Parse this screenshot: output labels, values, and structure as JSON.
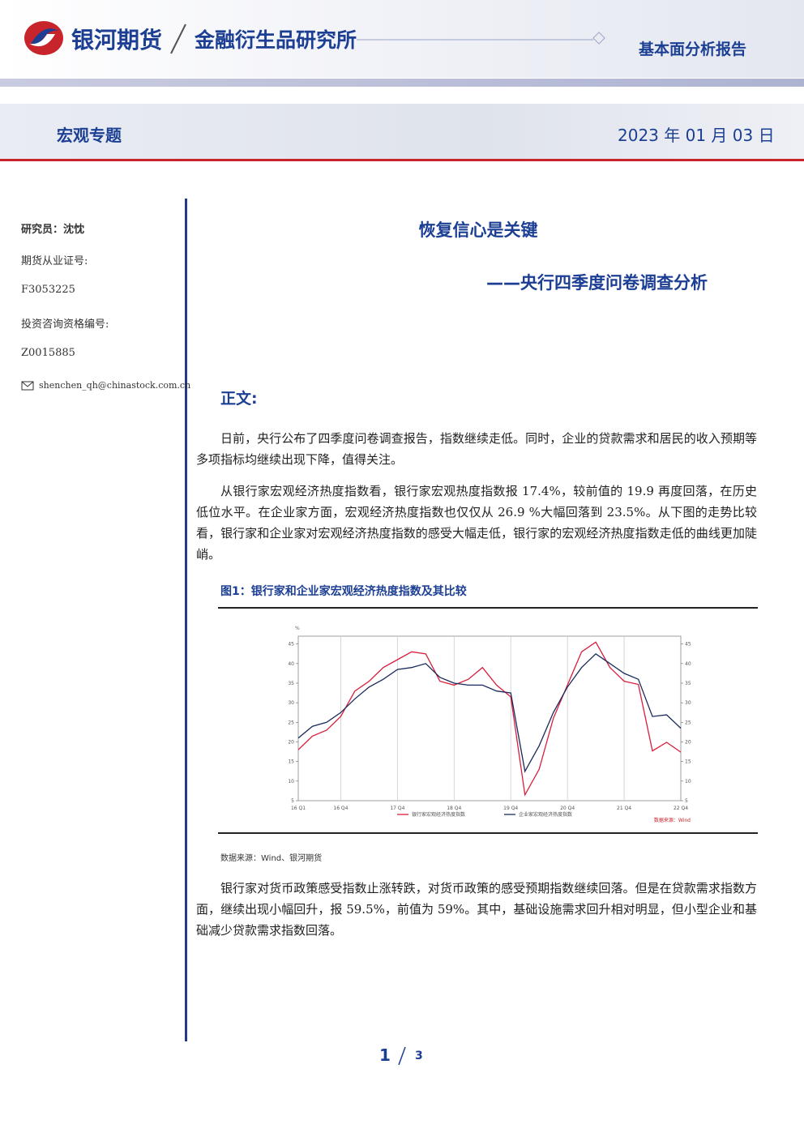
{
  "header": {
    "brand": "银河期货",
    "institute": "金融衍生品研究所",
    "report_type": "基本面分析报告",
    "topic": "宏观专题",
    "date": "2023 年 01 月 03 日"
  },
  "sidebar": {
    "analyst": "研究员：沈忱",
    "license_label": "期货从业证号:",
    "license": "F3053225",
    "consult_label": "投资咨询资格编号:",
    "consult": "Z0015885",
    "email": "shenchen_qh@chinastock.com.cn"
  },
  "article": {
    "title": "恢复信心是关键",
    "subtitle": "——央行四季度问卷调查分析",
    "section": "正文:",
    "paragraphs": [
      "日前，央行公布了四季度问卷调查报告，指数继续走低。同时，企业的贷款需求和居民的收入预期等多项指标均继续出现下降，值得关注。",
      "从银行家宏观经济热度指数看，银行家宏观热度指数报 17.4%，较前值的 19.9 再度回落，在历史低位水平。在企业家方面，宏观经济热度指数也仅仅从 26.9 %大幅回落到 23.5%。从下图的走势比较看，银行家和企业家对宏观经济热度指数的感受大幅走低，银行家的宏观经济热度指数走低的曲线更加陡峭。",
      "银行家对货币政策感受指数止涨转跌，对货币政策的感受预期指数继续回落。但是在贷款需求指数方面，继续出现小幅回升，报 59.5%，前值为 59%。其中，基础设施需求回升相对明显，但小型企业和基础减少贷款需求指数回落。"
    ],
    "figure_caption": "图1：银行家和企业家宏观经济热度指数及其比较",
    "figure_source": "数据来源：Wind、银河期货"
  },
  "footer": {
    "page": "1",
    "total": "3"
  },
  "chart_data": {
    "type": "line",
    "y_unit": "%",
    "watermark": "数据来源：Wind",
    "categories": [
      "16 Q1",
      null,
      null,
      "16 Q4",
      null,
      null,
      null,
      "17 Q4",
      null,
      null,
      null,
      "18 Q4",
      null,
      null,
      null,
      "19 Q4",
      null,
      null,
      null,
      "20 Q4",
      null,
      null,
      null,
      "21 Q4",
      null,
      null,
      null,
      "22 Q4"
    ],
    "series": [
      {
        "name": "银行家宏观经济热度指数",
        "color": "#d81e3c",
        "values": [
          18,
          21.5,
          23,
          26.5,
          33,
          35.5,
          39,
          41,
          43,
          42.5,
          35.5,
          34.5,
          36,
          39,
          34.5,
          31.5,
          6.5,
          13,
          26,
          34.5,
          43,
          45.5,
          39,
          35.5,
          34.7,
          17.7,
          19.9,
          17.4
        ]
      },
      {
        "name": "企业家宏观经济热度指数",
        "color": "#1a2a5c",
        "values": [
          21,
          24,
          25,
          27.5,
          31,
          34,
          36,
          38.5,
          39,
          40,
          36.5,
          35,
          34.5,
          34.5,
          33,
          32.5,
          12.5,
          19,
          27.5,
          34,
          39,
          42.5,
          40,
          37.5,
          36,
          26.5,
          26.9,
          23.5
        ]
      }
    ],
    "ylim": [
      5,
      47
    ],
    "yticks": [
      5,
      10,
      15,
      20,
      25,
      30,
      35,
      40,
      45
    ],
    "grid": true
  }
}
